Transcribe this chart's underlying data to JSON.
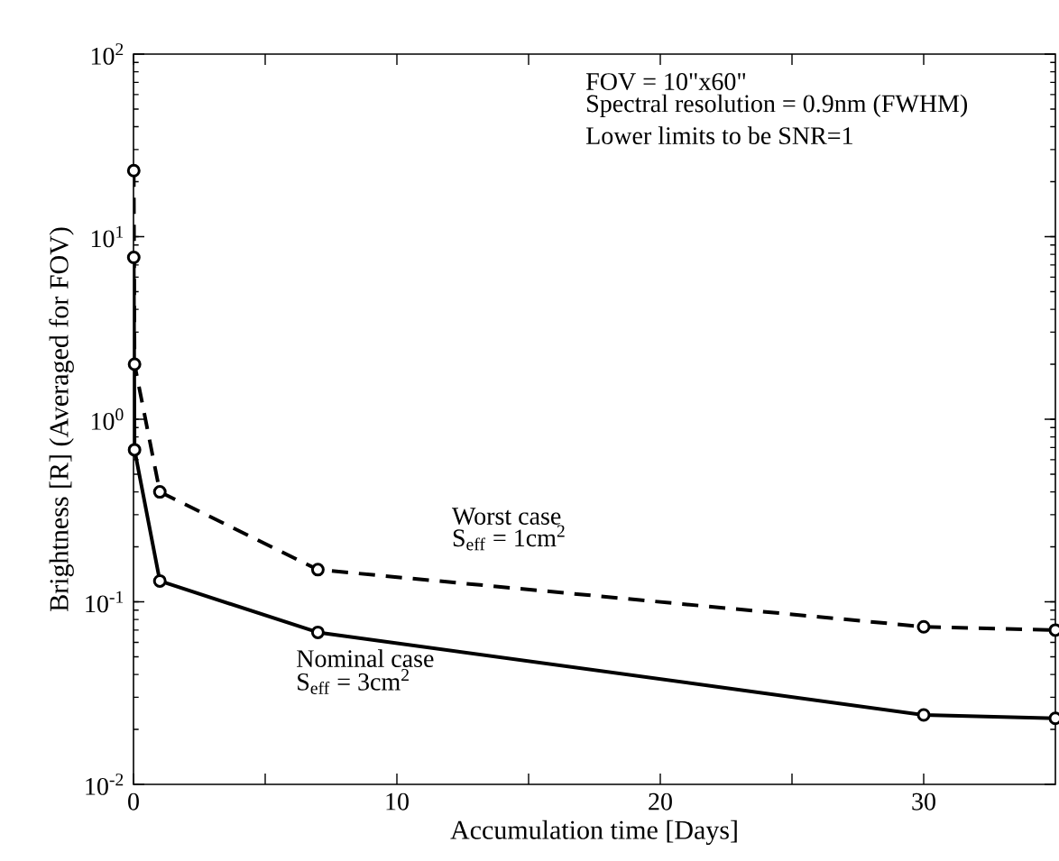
{
  "chart_data": {
    "type": "line",
    "xlabel": "Accumulation time [Days]",
    "ylabel": "Brightness [R] (Averaged for FOV)",
    "log": "y",
    "xlim": [
      0,
      35
    ],
    "ylim": [
      0.01,
      100
    ],
    "xticks": [
      0,
      {
        "value": 5,
        "label": null
      },
      10,
      {
        "value": 15,
        "label": null
      },
      20,
      {
        "value": 25,
        "label": null
      },
      30
    ],
    "yticks": [
      {
        "value": 0.01,
        "label": "10$^{-2}$"
      },
      {
        "value": 0.1,
        "label": "10$^{-1}$"
      },
      {
        "value": 1,
        "label": "10$^{0}$"
      },
      {
        "value": 10,
        "label": "10$^{1}$"
      },
      {
        "value": 100,
        "label": "10$^{2}$"
      }
    ],
    "marker": "circle",
    "legend": false,
    "grid": false,
    "series": [
      {
        "name": "Worst case",
        "color": "#000000",
        "line_style": "dashed",
        "x": [
          0.01,
          0.04,
          1,
          7,
          30,
          35
        ],
        "values": [
          23,
          2.0,
          0.4,
          0.15,
          0.073,
          0.07
        ]
      },
      {
        "name": "Nominal case",
        "color": "#000000",
        "line_style": "solid",
        "x": [
          0.01,
          0.04,
          1,
          7,
          30,
          35
        ],
        "values": [
          7.7,
          0.68,
          0.13,
          0.068,
          0.024,
          0.023
        ]
      }
    ],
    "annotations": [
      "FOV = 10\"x60\"",
      "Spectral resolution = 0.9nm (FWHM)",
      "Lower limits to be SNR=1",
      "S$_{eff}$ = 1cm$^{2}$",
      "S$_{eff}$ = 3cm$^{2}$"
    ]
  }
}
